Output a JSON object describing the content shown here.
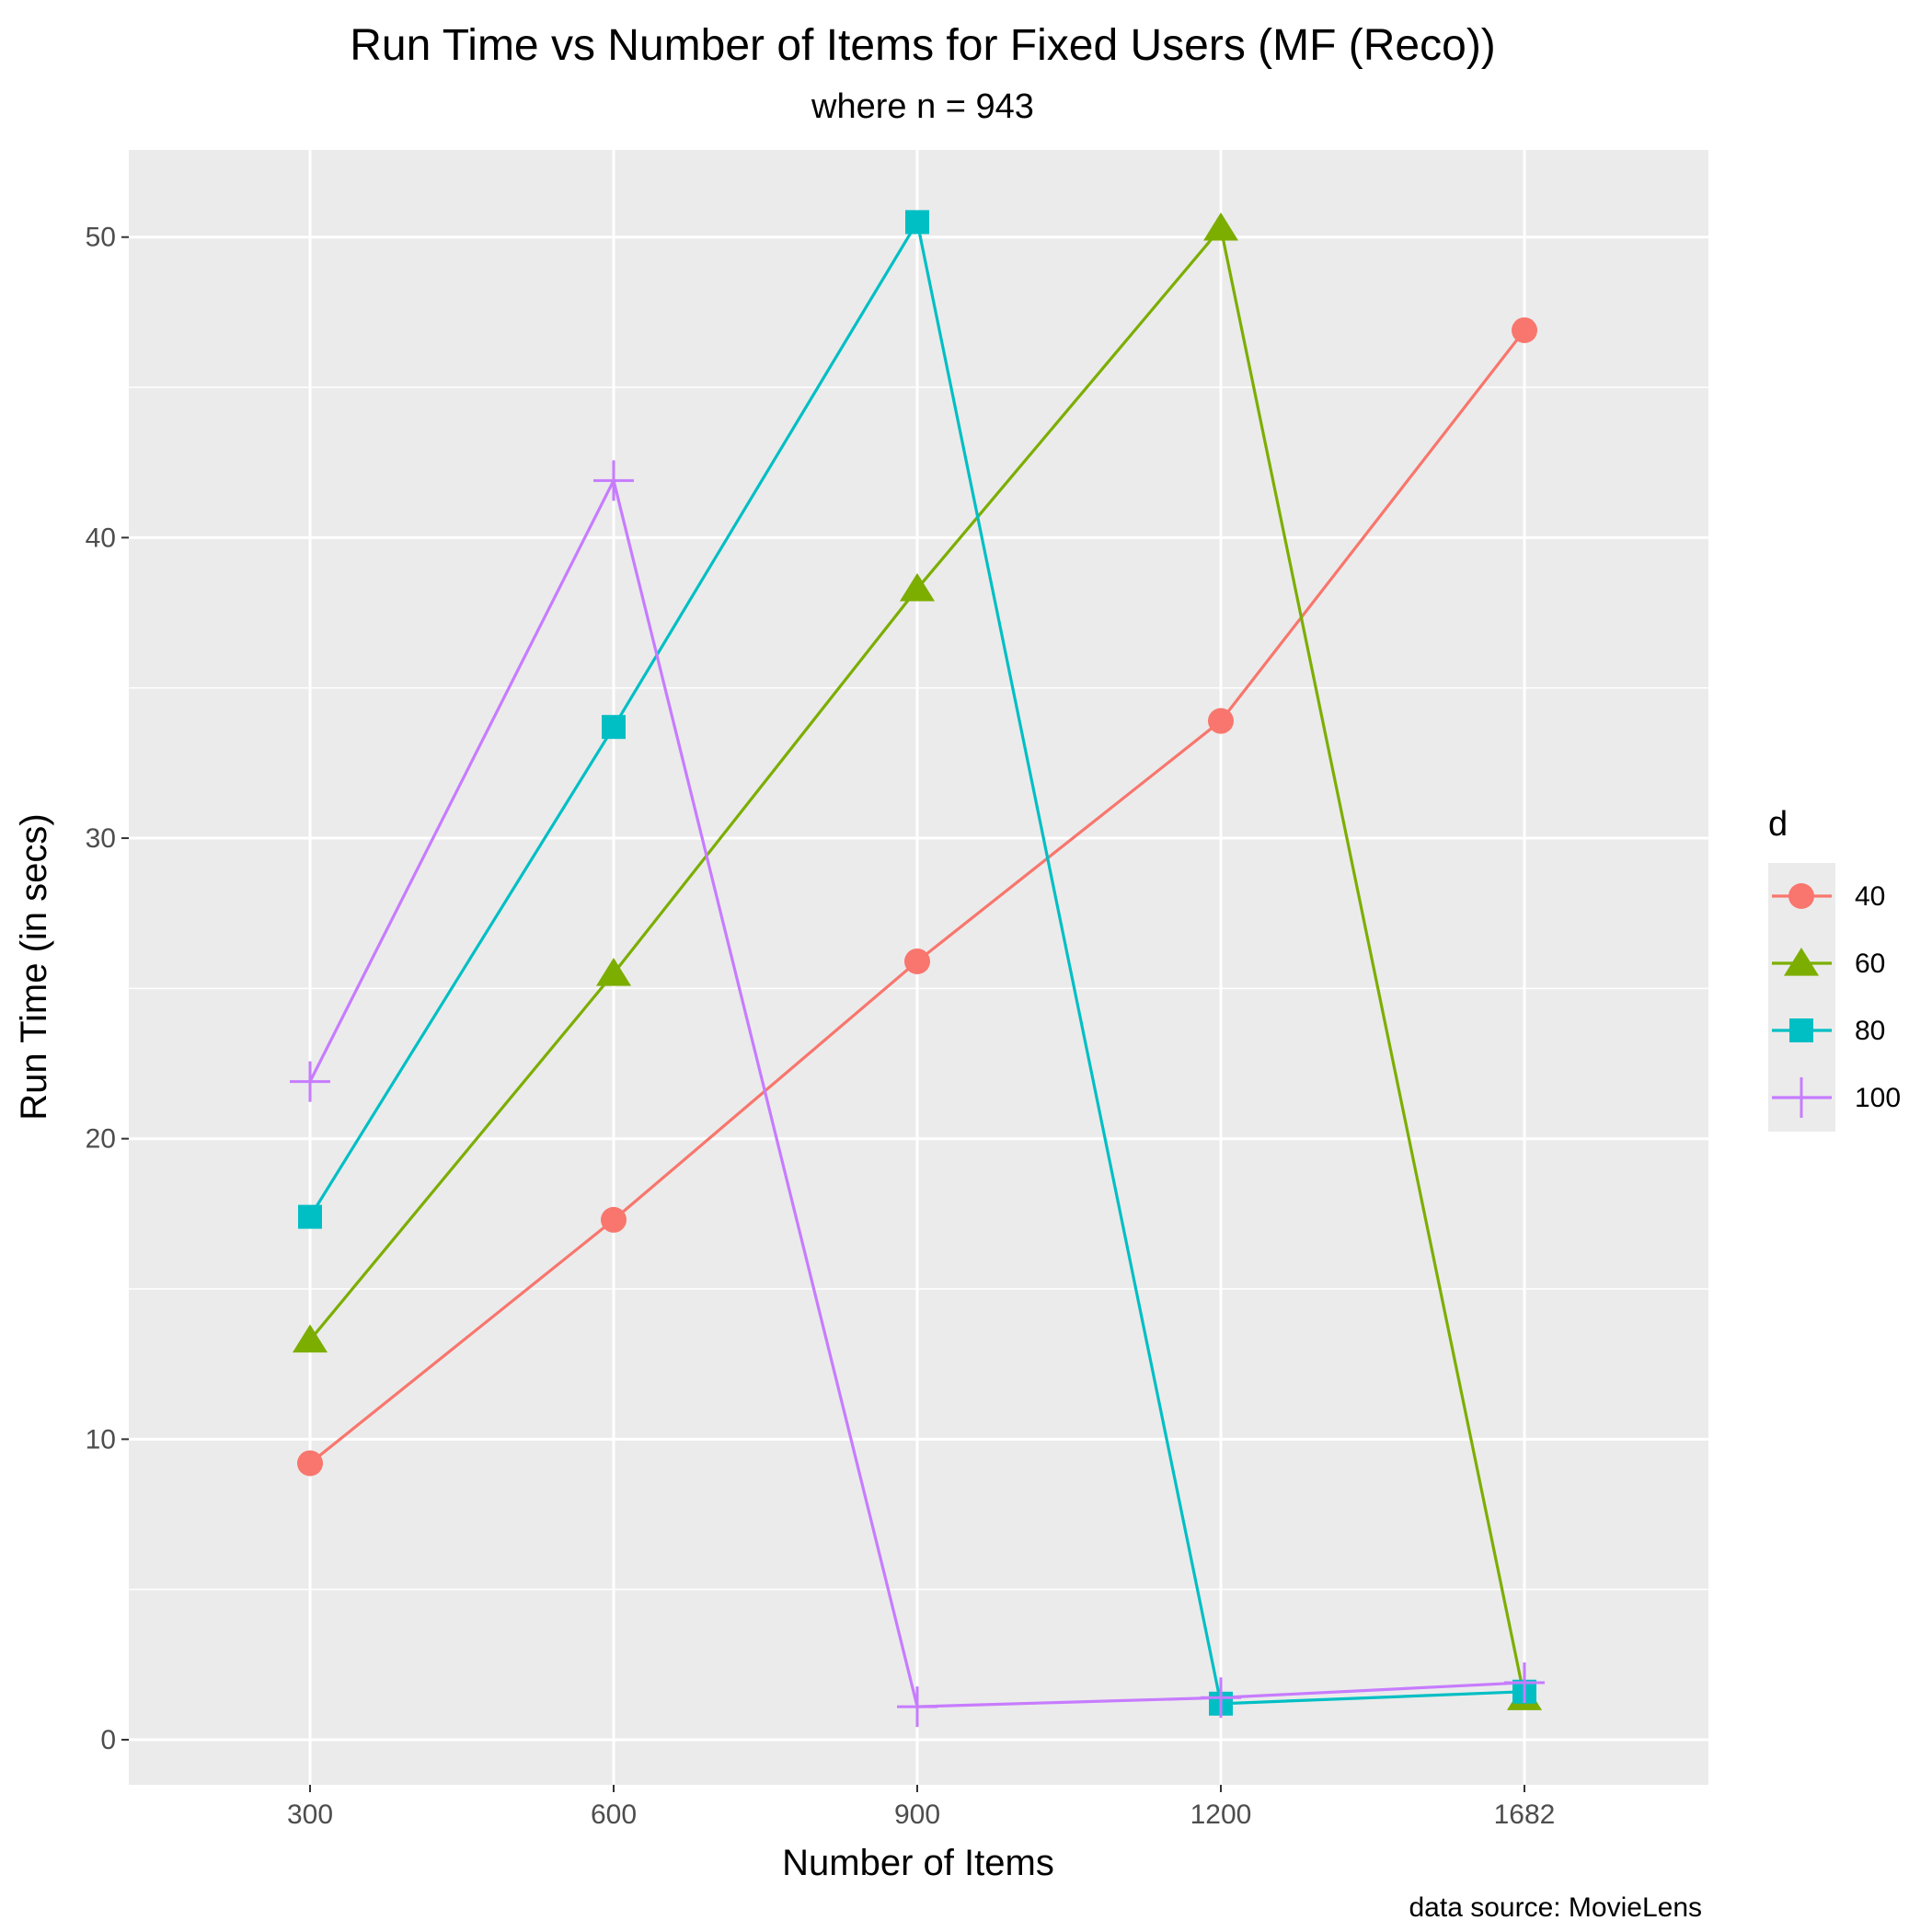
{
  "chart_data": {
    "type": "line",
    "title": "Run Time vs Number of Items for Fixed Users (MF (Reco))",
    "subtitle": "where n = 943",
    "xlabel": "Number of Items",
    "ylabel": "Run Time (in secs)",
    "caption": "data source: MovieLens",
    "categories": [
      "300",
      "600",
      "900",
      "1200",
      "1682"
    ],
    "ylim": [
      -1.5,
      52.9
    ],
    "yticks": [
      0,
      10,
      20,
      30,
      40,
      50
    ],
    "grid": true,
    "legend": {
      "title": "d",
      "position": "right"
    },
    "series": [
      {
        "name": "40",
        "color": "#F8766D",
        "shape": "circle",
        "values": [
          9.2,
          17.3,
          25.9,
          33.9,
          46.9
        ]
      },
      {
        "name": "60",
        "color": "#7CAE00",
        "shape": "triangle",
        "values": [
          13.3,
          25.5,
          38.3,
          50.3,
          1.4
        ]
      },
      {
        "name": "80",
        "color": "#00BFC4",
        "shape": "square",
        "values": [
          17.4,
          33.7,
          50.5,
          1.2,
          1.6
        ]
      },
      {
        "name": "100",
        "color": "#C77CFF",
        "shape": "plus",
        "values": [
          21.9,
          41.9,
          1.1,
          1.4,
          1.9
        ]
      }
    ]
  }
}
